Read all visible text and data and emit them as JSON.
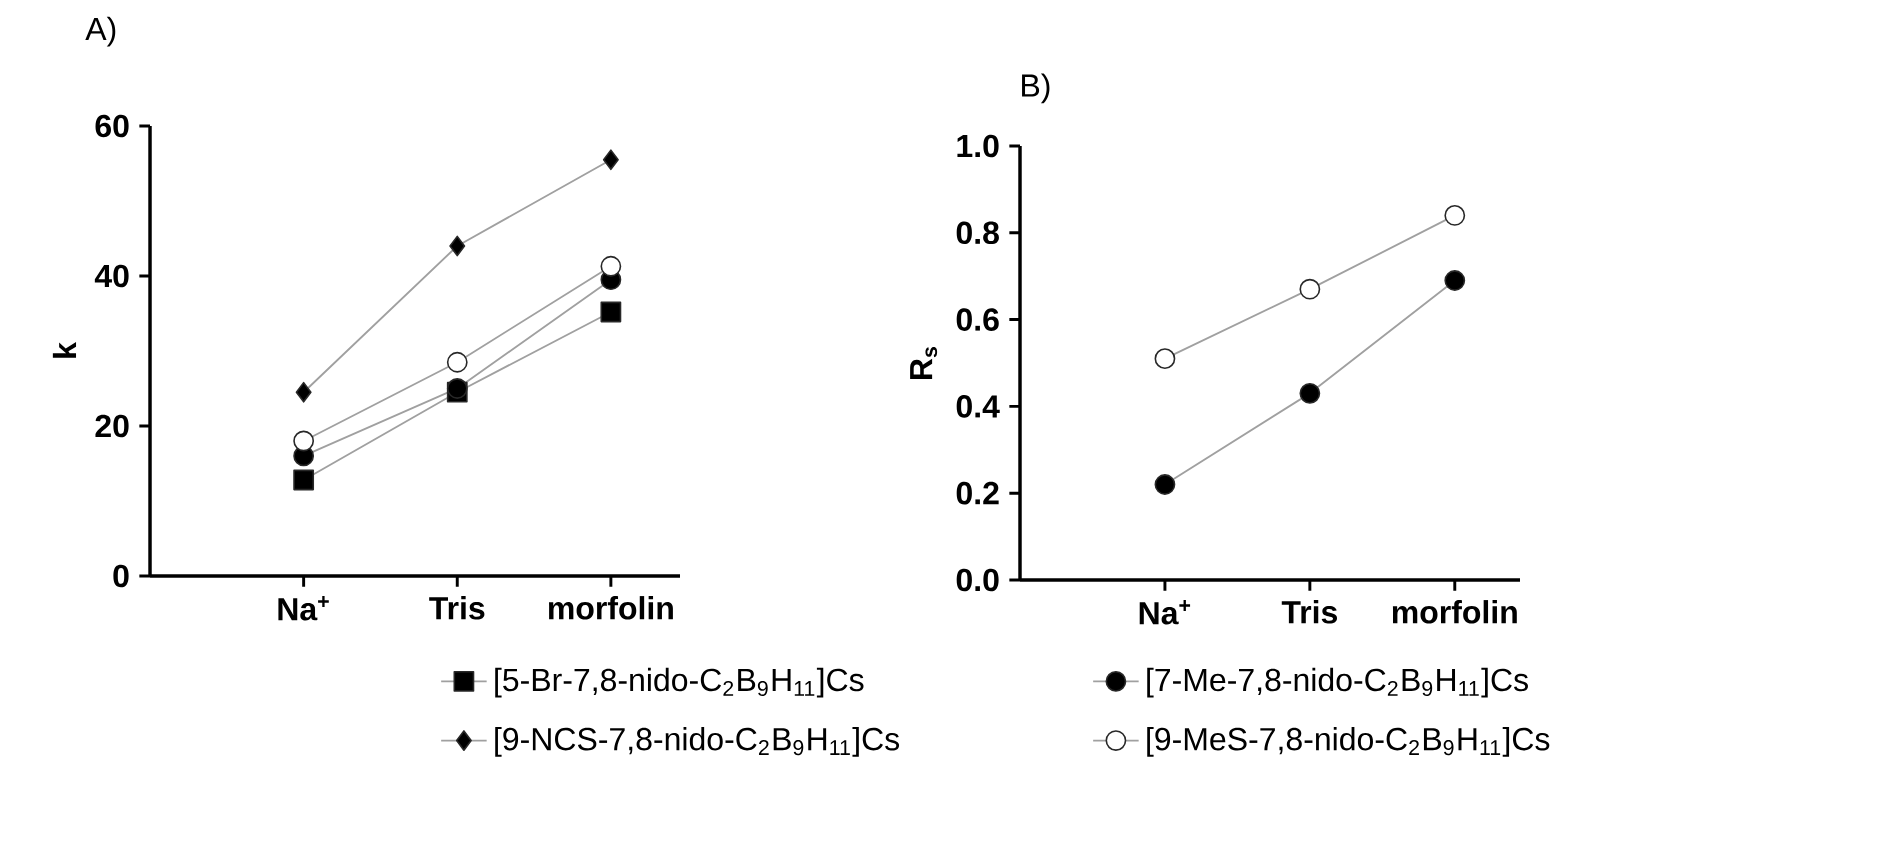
{
  "chart_data": [
    {
      "type": "line",
      "title": "A)",
      "ylabel": "k",
      "categories": [
        "Na$^{+}$",
        "Tris",
        "morfolin"
      ],
      "ylim": [
        0,
        60
      ],
      "yticks": [
        0,
        20,
        40,
        60
      ],
      "grid": false,
      "legend": "bottom",
      "series": [
        {
          "name": "[5-Br-7,8-nido-C$_{2}$B$_{9}$H$_{11}$]Cs",
          "color": "#000000",
          "marker": "square",
          "values": [
            12.8,
            24.5,
            35.2
          ]
        },
        {
          "name": "[7-Me-7,8-nido-C$_{2}$B$_{9}$H$_{11}$]Cs",
          "color": "#000000",
          "marker": "circle",
          "values": [
            16,
            25,
            39.5
          ]
        },
        {
          "name": "[9-NCS-7,8-nido-C$_{2}$B$_{9}$H$_{11}$]Cs",
          "color": "#000000",
          "marker": "diamond",
          "values": [
            24.5,
            44,
            55.5
          ]
        },
        {
          "name": "[9-MeS-7,8-nido-C$_{2}$B$_{9}$H$_{11}$]Cs",
          "color": "#ffffff",
          "marker": "circle",
          "values": [
            18,
            28.5,
            41.3
          ]
        }
      ]
    },
    {
      "type": "line",
      "title": "B)",
      "ylabel": "R$_{s}$",
      "categories": [
        "Na$^{+}$",
        "Tris",
        "morfolin"
      ],
      "ylim": [
        0,
        1
      ],
      "yticks": [
        {
          "value": 0,
          "label": "0.0"
        },
        {
          "value": 0.2,
          "label": "0.2"
        },
        {
          "value": 0.4,
          "label": "0.4"
        },
        {
          "value": 0.6,
          "label": "0.6"
        },
        {
          "value": 0.8,
          "label": "0.8"
        },
        {
          "value": 1,
          "label": "1.0"
        }
      ],
      "grid": false,
      "series": [
        {
          "color": "#000000",
          "marker": "circle",
          "values": [
            0.22,
            0.43,
            0.69
          ]
        },
        {
          "color": "#ffffff",
          "marker": "circle",
          "values": [
            0.51,
            0.67,
            0.84
          ]
        }
      ]
    }
  ]
}
